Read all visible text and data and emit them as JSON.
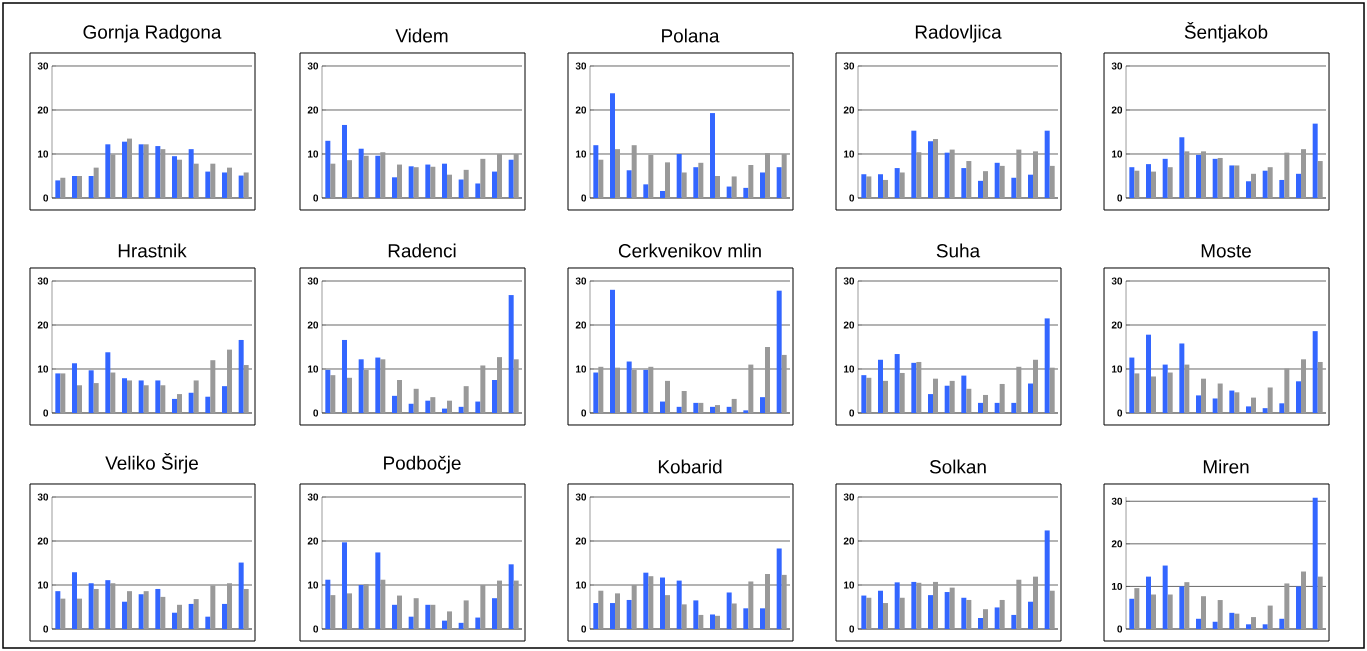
{
  "chart_data": [
    {
      "type": "bar",
      "title": "Gornja Radgona",
      "categories": [
        null,
        null,
        null,
        null,
        null,
        null,
        null,
        null,
        null,
        null,
        null,
        null
      ],
      "ylim": [
        0,
        30
      ],
      "yticks": [
        0,
        10,
        20,
        30
      ],
      "grid": "y",
      "series": [
        {
          "color": "#3366ff",
          "values": [
            4,
            5,
            5,
            12.2,
            12.8,
            12.2,
            11.8,
            9.5,
            11.1,
            6,
            5.8,
            5.1
          ]
        },
        {
          "color": "#999999",
          "values": [
            4.6,
            5,
            6.9,
            9.9,
            13.5,
            12.2,
            11.1,
            8.7,
            7.8,
            7.8,
            6.9,
            5.8
          ]
        }
      ]
    },
    {
      "type": "bar",
      "title": "Videm",
      "categories": [
        null,
        null,
        null,
        null,
        null,
        null,
        null,
        null,
        null,
        null,
        null,
        null
      ],
      "ylim": [
        0,
        30
      ],
      "yticks": [
        0,
        10,
        20,
        30
      ],
      "grid": "y",
      "series": [
        {
          "color": "#3366ff",
          "values": [
            13,
            16.6,
            11.2,
            9.6,
            4.7,
            7.2,
            7.6,
            7.8,
            4.2,
            3.3,
            6,
            8.7
          ]
        },
        {
          "color": "#999999",
          "values": [
            7.8,
            8.6,
            9.6,
            10.4,
            7.6,
            7,
            7.1,
            5.3,
            6.4,
            8.9,
            10,
            10
          ]
        }
      ]
    },
    {
      "type": "bar",
      "title": "Polana",
      "categories": [
        null,
        null,
        null,
        null,
        null,
        null,
        null,
        null,
        null,
        null,
        null,
        null
      ],
      "ylim": [
        0,
        30
      ],
      "yticks": [
        0,
        10,
        20,
        30
      ],
      "grid": "y",
      "series": [
        {
          "color": "#3366ff",
          "values": [
            12,
            23.8,
            6.3,
            3.1,
            1.6,
            10,
            7,
            19.3,
            2.6,
            2.3,
            5.8,
            7
          ]
        },
        {
          "color": "#999999",
          "values": [
            8.7,
            11.1,
            12,
            9.8,
            8.1,
            5.8,
            8,
            5,
            4.9,
            7.5,
            10.2,
            10
          ]
        }
      ]
    },
    {
      "type": "bar",
      "title": "Radovljica",
      "categories": [
        null,
        null,
        null,
        null,
        null,
        null,
        null,
        null,
        null,
        null,
        null,
        null
      ],
      "ylim": [
        0,
        30
      ],
      "yticks": [
        0,
        10,
        20,
        30
      ],
      "grid": "y",
      "series": [
        {
          "color": "#3366ff",
          "values": [
            5.4,
            5.4,
            6.8,
            15.3,
            12.9,
            10.3,
            6.8,
            3.9,
            8,
            4.6,
            5.3,
            15.3
          ]
        },
        {
          "color": "#999999",
          "values": [
            4.9,
            4.1,
            5.8,
            10.4,
            13.4,
            11,
            8.4,
            6.1,
            7.3,
            11,
            10.6,
            7.3
          ]
        }
      ]
    },
    {
      "type": "bar",
      "title": "Šentjakob",
      "categories": [
        null,
        null,
        null,
        null,
        null,
        null,
        null,
        null,
        null,
        null,
        null,
        null
      ],
      "ylim": [
        0,
        30
      ],
      "yticks": [
        0,
        10,
        20,
        30
      ],
      "grid": "y",
      "series": [
        {
          "color": "#3366ff",
          "values": [
            7,
            7.7,
            8.9,
            13.8,
            9.8,
            8.9,
            7.4,
            3.8,
            6.2,
            4.1,
            5.5,
            16.9
          ]
        },
        {
          "color": "#999999",
          "values": [
            6.2,
            6,
            7,
            10.6,
            10.6,
            9.1,
            7.4,
            5.5,
            7,
            10.3,
            11.1,
            8.4
          ]
        }
      ]
    },
    {
      "type": "bar",
      "title": "Hrastnik",
      "categories": [
        null,
        null,
        null,
        null,
        null,
        null,
        null,
        null,
        null,
        null,
        null,
        null
      ],
      "ylim": [
        0,
        30
      ],
      "yticks": [
        0,
        10,
        20,
        30
      ],
      "grid": "y",
      "series": [
        {
          "color": "#3366ff",
          "values": [
            9,
            11.3,
            9.7,
            13.8,
            7.9,
            7.4,
            7.4,
            3.2,
            4.6,
            3.7,
            6.1,
            16.6
          ]
        },
        {
          "color": "#999999",
          "values": [
            9,
            6.3,
            6.8,
            9.2,
            7.4,
            6.3,
            6.3,
            4.3,
            7.4,
            12,
            14.4,
            10.9
          ]
        }
      ]
    },
    {
      "type": "bar",
      "title": "Radenci",
      "categories": [
        null,
        null,
        null,
        null,
        null,
        null,
        null,
        null,
        null,
        null,
        null,
        null
      ],
      "ylim": [
        0,
        30
      ],
      "yticks": [
        0,
        10,
        20,
        30
      ],
      "grid": "y",
      "series": [
        {
          "color": "#3366ff",
          "values": [
            9.8,
            16.6,
            12.2,
            12.6,
            3.9,
            2.1,
            2.8,
            1,
            1.4,
            2.6,
            7.5,
            26.8
          ]
        },
        {
          "color": "#999999",
          "values": [
            8.6,
            8,
            9.8,
            12.2,
            7.5,
            5.5,
            3.6,
            2.8,
            6.1,
            10.8,
            12.7,
            12.2
          ]
        }
      ]
    },
    {
      "type": "bar",
      "title": "Cerkvenikov mlin",
      "categories": [
        null,
        null,
        null,
        null,
        null,
        null,
        null,
        null,
        null,
        null,
        null,
        null
      ],
      "ylim": [
        0,
        30
      ],
      "yticks": [
        0,
        10,
        20,
        30
      ],
      "grid": "y",
      "series": [
        {
          "color": "#3366ff",
          "values": [
            9.2,
            28,
            11.7,
            9.8,
            2.6,
            1.4,
            2.3,
            1.4,
            1.4,
            0.6,
            3.6,
            27.8
          ]
        },
        {
          "color": "#999999",
          "values": [
            10.5,
            10.3,
            9.8,
            10.5,
            7.3,
            5,
            2.3,
            1.8,
            3.2,
            11,
            15,
            13.2
          ]
        }
      ]
    },
    {
      "type": "bar",
      "title": "Suha",
      "categories": [
        null,
        null,
        null,
        null,
        null,
        null,
        null,
        null,
        null,
        null,
        null,
        null
      ],
      "ylim": [
        0,
        30
      ],
      "yticks": [
        0,
        10,
        20,
        30
      ],
      "grid": "y",
      "series": [
        {
          "color": "#3366ff",
          "values": [
            8.6,
            12.1,
            13.4,
            11.4,
            4.3,
            6.2,
            8.5,
            2.3,
            2.3,
            2.3,
            6.7,
            21.5
          ]
        },
        {
          "color": "#999999",
          "values": [
            8,
            7.3,
            9.1,
            11.6,
            7.8,
            7.3,
            5.5,
            4.1,
            6.6,
            10.5,
            12.1,
            10.3
          ]
        }
      ]
    },
    {
      "type": "bar",
      "title": "Moste",
      "categories": [
        null,
        null,
        null,
        null,
        null,
        null,
        null,
        null,
        null,
        null,
        null,
        null
      ],
      "ylim": [
        0,
        30
      ],
      "yticks": [
        0,
        10,
        20,
        30
      ],
      "grid": "y",
      "series": [
        {
          "color": "#3366ff",
          "values": [
            12.6,
            17.8,
            11,
            15.8,
            4,
            3.3,
            5.1,
            1.5,
            1.1,
            2.2,
            7.2,
            18.6
          ]
        },
        {
          "color": "#999999",
          "values": [
            9,
            8.3,
            9.2,
            11,
            7.8,
            6.7,
            4.7,
            3.5,
            5.8,
            10.1,
            12.2,
            11.6
          ]
        }
      ]
    },
    {
      "type": "bar",
      "title": "Veliko Širje",
      "categories": [
        null,
        null,
        null,
        null,
        null,
        null,
        null,
        null,
        null,
        null,
        null,
        null
      ],
      "ylim": [
        0,
        30
      ],
      "yticks": [
        0,
        10,
        20,
        30
      ],
      "grid": "y",
      "series": [
        {
          "color": "#3366ff",
          "values": [
            8.6,
            12.9,
            10.4,
            11.1,
            6.2,
            7.9,
            9.1,
            3.7,
            5.7,
            2.8,
            5.7,
            15.1
          ]
        },
        {
          "color": "#999999",
          "values": [
            6.9,
            6.9,
            9.1,
            10.4,
            8.6,
            8.6,
            7.3,
            5.5,
            6.8,
            9.9,
            10.4,
            9.1
          ]
        }
      ]
    },
    {
      "type": "bar",
      "title": "Podbočje",
      "categories": [
        null,
        null,
        null,
        null,
        null,
        null,
        null,
        null,
        null,
        null,
        null,
        null
      ],
      "ylim": [
        0,
        30
      ],
      "yticks": [
        0,
        10,
        20,
        30
      ],
      "grid": "y",
      "series": [
        {
          "color": "#3366ff",
          "values": [
            11.2,
            19.7,
            10,
            17.4,
            5.5,
            2.8,
            5.5,
            1.9,
            1.4,
            2.6,
            7,
            14.7
          ]
        },
        {
          "color": "#999999",
          "values": [
            7.7,
            8.1,
            10.2,
            11.2,
            7.6,
            7,
            5.5,
            4,
            6.5,
            10,
            11,
            11
          ]
        }
      ]
    },
    {
      "type": "bar",
      "title": "Kobarid",
      "categories": [
        null,
        null,
        null,
        null,
        null,
        null,
        null,
        null,
        null,
        null,
        null,
        null
      ],
      "ylim": [
        0,
        30
      ],
      "yticks": [
        0,
        10,
        20,
        30
      ],
      "grid": "y",
      "series": [
        {
          "color": "#3366ff",
          "values": [
            5.9,
            5.9,
            6.6,
            12.8,
            11.7,
            11,
            6.5,
            3.3,
            8.3,
            4.7,
            4.7,
            18.3
          ]
        },
        {
          "color": "#999999",
          "values": [
            8.7,
            8.1,
            10,
            12,
            7.7,
            5.6,
            3.2,
            3,
            5.8,
            10.8,
            12.5,
            12.3
          ]
        }
      ]
    },
    {
      "type": "bar",
      "title": "Solkan",
      "categories": [
        null,
        null,
        null,
        null,
        null,
        null,
        null,
        null,
        null,
        null,
        null,
        null
      ],
      "ylim": [
        0,
        30
      ],
      "yticks": [
        0,
        10,
        20,
        30
      ],
      "grid": "y",
      "series": [
        {
          "color": "#3366ff",
          "values": [
            7.6,
            8.7,
            10.6,
            10.7,
            7.7,
            8.4,
            7.1,
            2.5,
            4.9,
            3.2,
            6.2,
            22.4
          ]
        },
        {
          "color": "#999999",
          "values": [
            7.1,
            5.9,
            7.1,
            10.5,
            10.7,
            9.4,
            6.6,
            4.5,
            6.6,
            11.2,
            11.9,
            8.7
          ]
        }
      ]
    },
    {
      "type": "bar",
      "title": "Miren",
      "categories": [
        null,
        null,
        null,
        null,
        null,
        null,
        null,
        null,
        null,
        null,
        null,
        null
      ],
      "ylim": [
        0,
        31
      ],
      "yticks": [
        0,
        10,
        20,
        30
      ],
      "grid": "y",
      "series": [
        {
          "color": "#3366ff",
          "values": [
            7.1,
            12.3,
            14.9,
            10,
            2.4,
            1.7,
            3.8,
            1.1,
            1.1,
            2.4,
            10,
            30.8
          ]
        },
        {
          "color": "#999999",
          "values": [
            9.6,
            8.1,
            8.1,
            11,
            7.7,
            6.8,
            3.6,
            2.8,
            5.5,
            10.7,
            13.5,
            12.3
          ]
        }
      ]
    }
  ]
}
